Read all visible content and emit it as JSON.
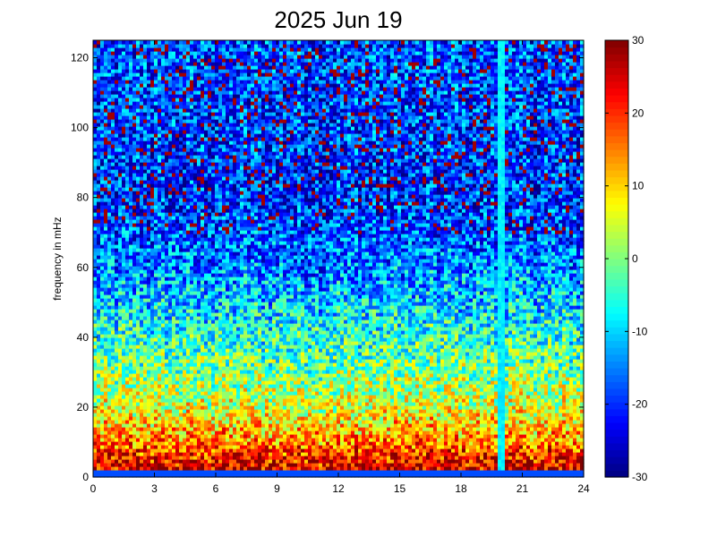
{
  "chart_data": {
    "type": "heatmap",
    "title": "2025 Jun 19",
    "xlabel": "",
    "ylabel": "frequency in mHz",
    "xlim": [
      0,
      24
    ],
    "ylim": [
      0,
      125
    ],
    "x_ticks": [
      "0",
      "3",
      "6",
      "9",
      "12",
      "15",
      "18",
      "21",
      "24"
    ],
    "x_tick_values": [
      0,
      3,
      6,
      9,
      12,
      15,
      18,
      21,
      24
    ],
    "y_ticks": [
      "0",
      "20",
      "40",
      "60",
      "80",
      "100",
      "120"
    ],
    "y_tick_values": [
      0,
      20,
      40,
      60,
      80,
      100,
      120
    ],
    "colorbar": {
      "range": [
        -30,
        30
      ],
      "ticks": [
        "30",
        "20",
        "10",
        "0",
        "-10",
        "-20",
        "-30"
      ],
      "tick_values": [
        30,
        20,
        10,
        0,
        -10,
        -20,
        -30
      ],
      "colormap": "jet"
    },
    "grid": false,
    "colors": {
      "low": "#00008f",
      "mid_low": "#0080ff",
      "mid": "#80ff80",
      "mid_high": "#ffb000",
      "high": "#800000"
    },
    "description_points": [
      {
        "frequency_mHz": 3,
        "level": 25
      },
      {
        "frequency_mHz": 10,
        "level": 15
      },
      {
        "frequency_mHz": 20,
        "level": 5
      },
      {
        "frequency_mHz": 40,
        "level": -5
      },
      {
        "frequency_mHz": 60,
        "level": -15
      },
      {
        "frequency_mHz": 80,
        "level": -20
      },
      {
        "frequency_mHz": 120,
        "level": -18
      }
    ],
    "features": [
      {
        "x": 20,
        "note": "vertical stripe across all frequencies"
      }
    ]
  }
}
